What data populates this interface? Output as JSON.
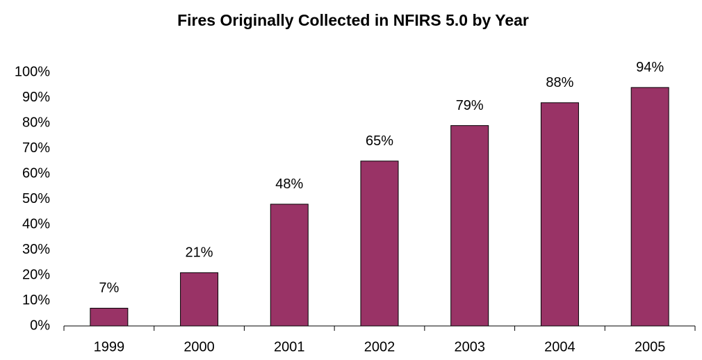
{
  "chart_data": {
    "type": "bar",
    "title": "Fires Originally Collected in NFIRS 5.0 by Year",
    "categories": [
      "1999",
      "2000",
      "2001",
      "2002",
      "2003",
      "2004",
      "2005"
    ],
    "values": [
      7,
      21,
      48,
      65,
      79,
      88,
      94
    ],
    "value_labels": [
      "7%",
      "21%",
      "48%",
      "65%",
      "79%",
      "88%",
      "94%"
    ],
    "color": "#993366",
    "ylim": [
      0,
      100
    ],
    "yticks": [
      {
        "value": 0,
        "label": "0%"
      },
      {
        "value": 10,
        "label": "10%"
      },
      {
        "value": 20,
        "label": "20%"
      },
      {
        "value": 30,
        "label": "30%"
      },
      {
        "value": 40,
        "label": "40%"
      },
      {
        "value": 50,
        "label": "50%"
      },
      {
        "value": 60,
        "label": "60%"
      },
      {
        "value": 70,
        "label": "70%"
      },
      {
        "value": 80,
        "label": "80%"
      },
      {
        "value": 90,
        "label": "90%"
      },
      {
        "value": 100,
        "label": "100%"
      }
    ],
    "grid": false
  }
}
